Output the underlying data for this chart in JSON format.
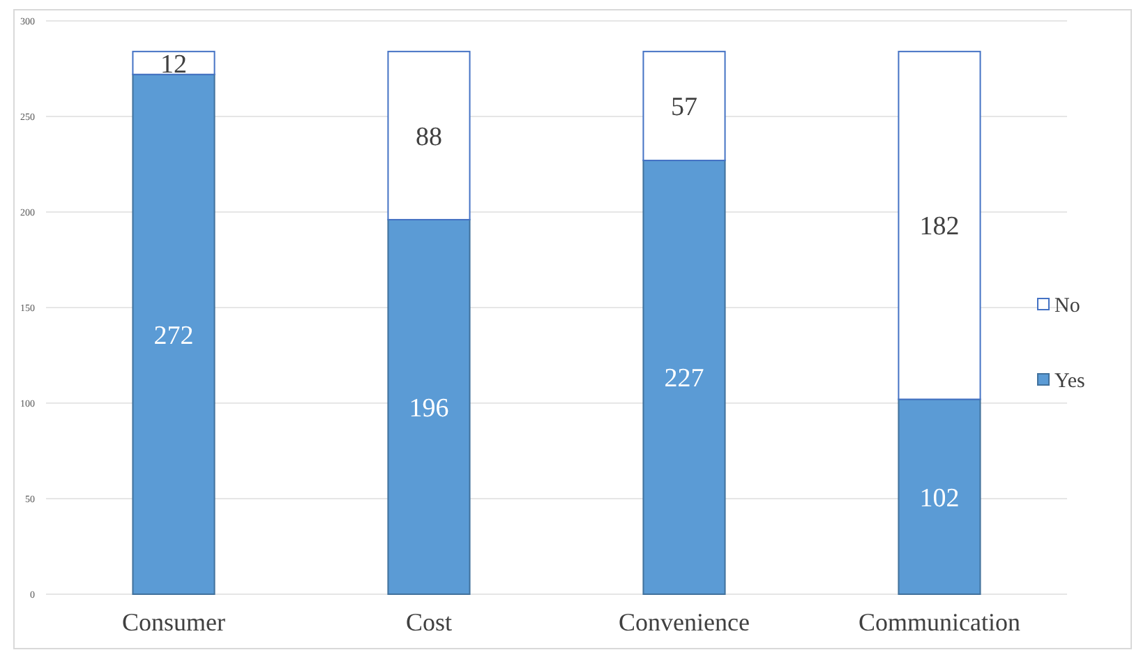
{
  "chart_data": {
    "type": "bar",
    "stacked": true,
    "categories": [
      "Consumer",
      "Cost",
      "Convenience",
      "Communication"
    ],
    "series": [
      {
        "name": "Yes",
        "color": "#5b9bd5",
        "values": [
          272,
          196,
          227,
          102
        ]
      },
      {
        "name": "No",
        "color": "#ffffff",
        "values": [
          12,
          88,
          57,
          182
        ]
      }
    ],
    "ylim": [
      0,
      300
    ],
    "yticks": [
      0,
      50,
      100,
      150,
      200,
      250,
      300
    ],
    "grid": "y",
    "legend": "right",
    "data_labels": true
  }
}
